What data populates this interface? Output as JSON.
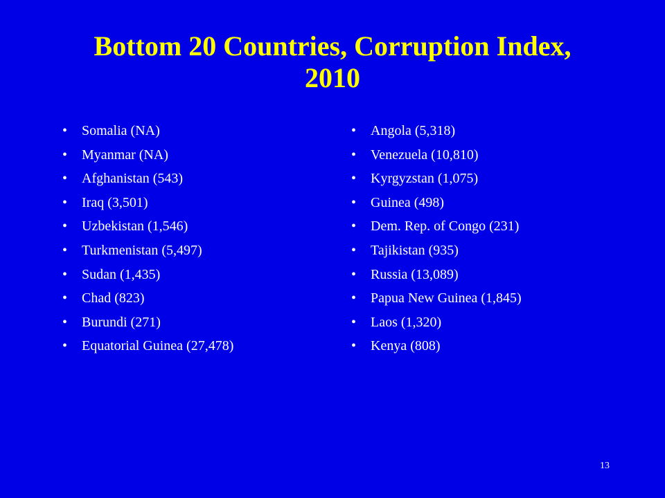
{
  "title": "Bottom 20 Countries, Corruption Index, 2010",
  "columns": [
    [
      "Somalia (NA)",
      "Myanmar (NA)",
      "Afghanistan (543)",
      "Iraq (3,501)",
      "Uzbekistan (1,546)",
      "Turkmenistan (5,497)",
      "Sudan (1,435)",
      "Chad (823)",
      "Burundi (271)",
      "Equatorial Guinea (27,478)"
    ],
    [
      "Angola (5,318)",
      "Venezuela (10,810)",
      "Kyrgyzstan (1,075)",
      "Guinea (498)",
      "Dem. Rep. of Congo (231)",
      "Tajikistan (935)",
      "Russia (13,089)",
      "Papua New Guinea (1,845)",
      "Laos (1,320)",
      "Kenya (808)"
    ]
  ],
  "page_number": "13"
}
